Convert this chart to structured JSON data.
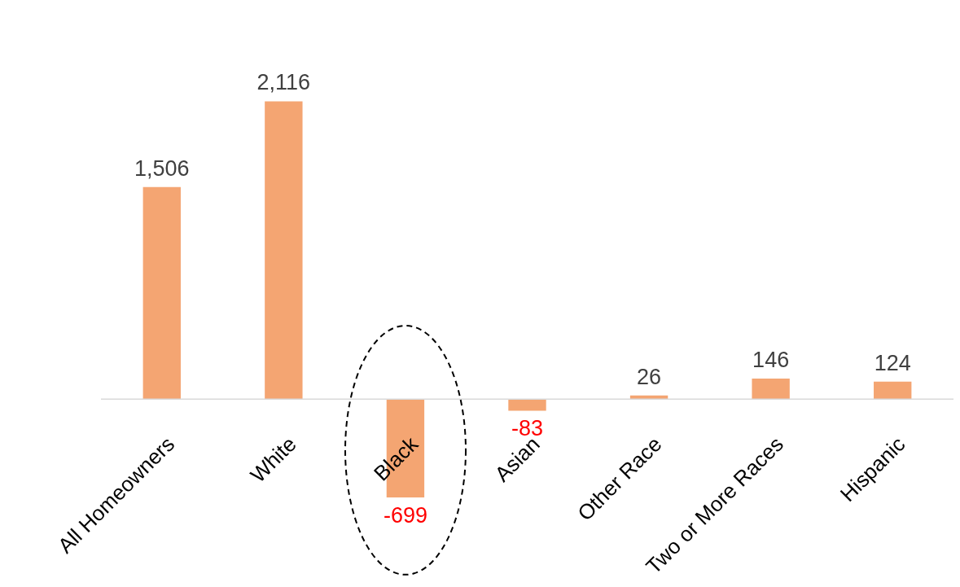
{
  "chart_data": {
    "type": "bar",
    "categories": [
      "All Homeowners",
      "White",
      "Black",
      "Asian",
      "Other Race",
      "Two or More Races",
      "Hispanic"
    ],
    "values": [
      1506,
      2116,
      -699,
      -83,
      26,
      146,
      124
    ],
    "value_labels": [
      "1,506",
      "2,116",
      "-699",
      "-83",
      "26",
      "146",
      "124"
    ],
    "color": "#f4a572"
  }
}
